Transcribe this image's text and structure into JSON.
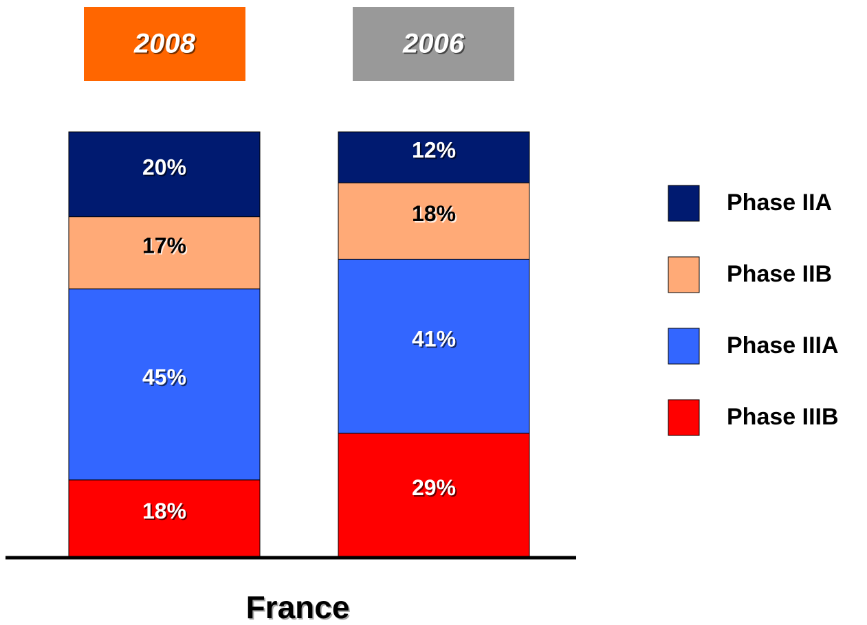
{
  "chart_data": {
    "type": "stacked_bar",
    "xlabel": "France",
    "categories": [
      "2008",
      "2006"
    ],
    "category_colors": [
      "#ff6600",
      "#999999"
    ],
    "series": [
      {
        "name": "Phase IIA",
        "color": "#001a70",
        "values": [
          20,
          12
        ],
        "value_labels": [
          "20%",
          "12%"
        ]
      },
      {
        "name": "Phase IIB",
        "color": "#ffaa77",
        "values": [
          17,
          18
        ],
        "value_labels": [
          "17%",
          "18%"
        ]
      },
      {
        "name": "Phase IIIA",
        "color": "#3366ff",
        "values": [
          45,
          41
        ],
        "value_labels": [
          "45%",
          "41%"
        ]
      },
      {
        "name": "Phase IIIB",
        "color": "#ff0000",
        "values": [
          18,
          29
        ],
        "value_labels": [
          "18%",
          "29%"
        ]
      }
    ],
    "legend": "right"
  }
}
